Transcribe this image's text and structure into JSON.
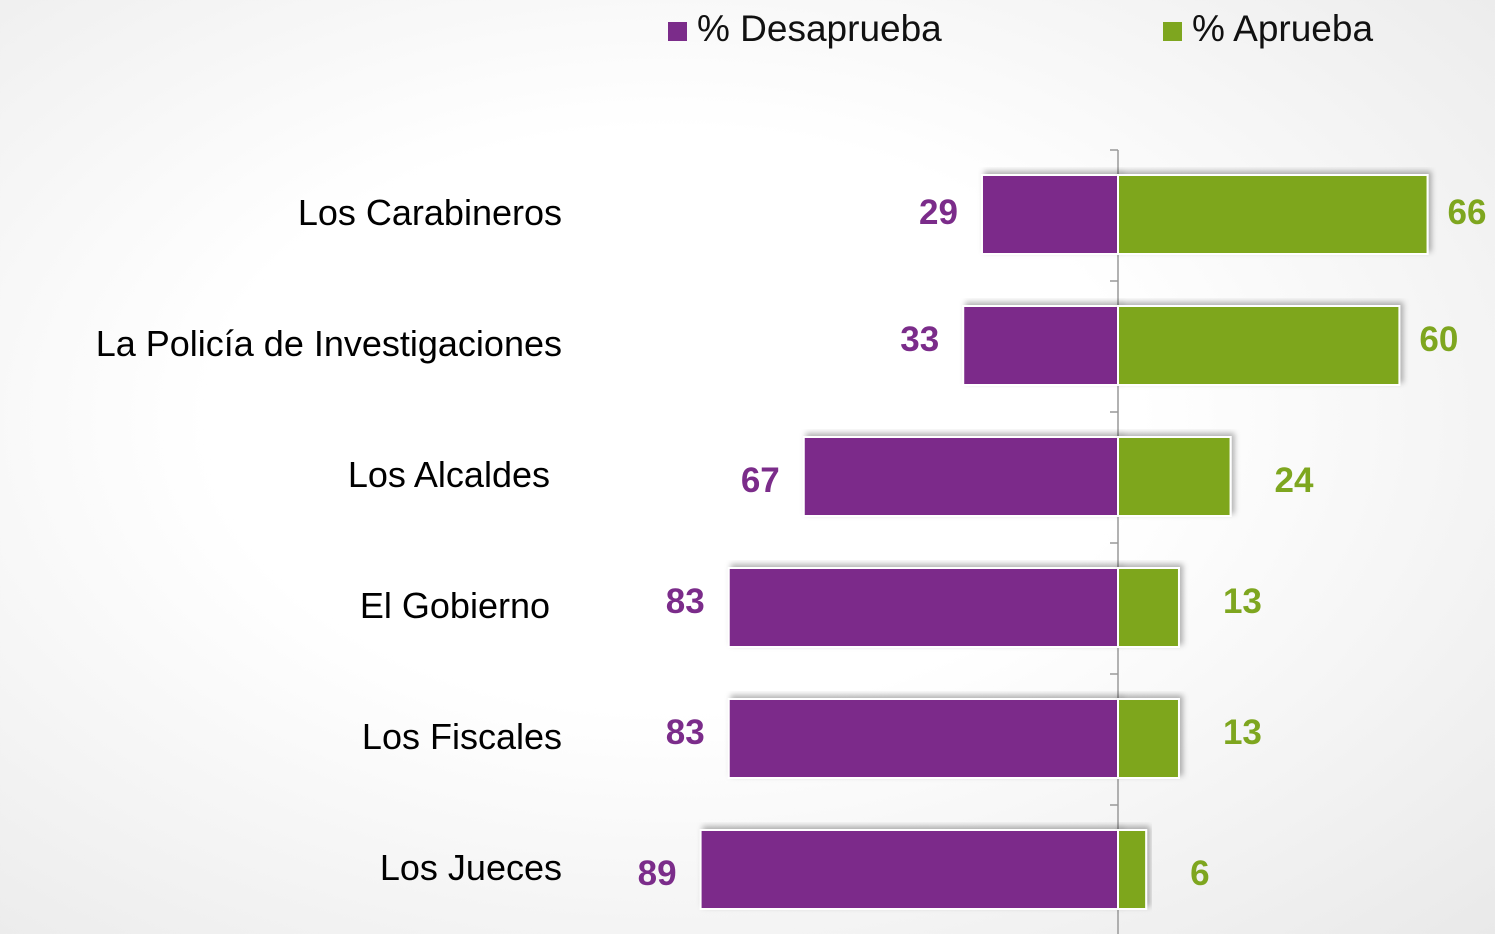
{
  "chart_data": {
    "type": "bar",
    "orientation": "diverging",
    "categories": [
      "Los Carabineros",
      "La Policía de Investigaciones",
      "Los Alcaldes",
      "El Gobierno",
      "Los Fiscales",
      "Los Jueces"
    ],
    "series": [
      {
        "name": "% Desaprueba",
        "color": "#7b2c8a",
        "values": [
          29,
          33,
          67,
          83,
          83,
          89
        ]
      },
      {
        "name": "% Aprueba",
        "color": "#7ea61f",
        "values": [
          66,
          60,
          24,
          13,
          13,
          6
        ]
      }
    ],
    "xlim": [
      0,
      100
    ],
    "legend": "top"
  }
}
